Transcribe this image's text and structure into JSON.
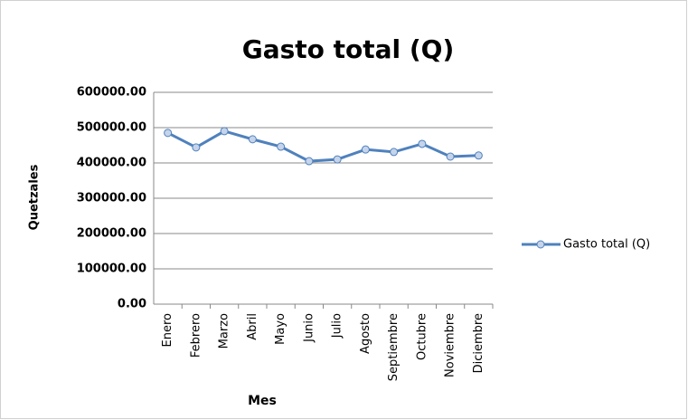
{
  "chart_data": {
    "type": "line",
    "title": "Gasto total (Q)",
    "x_label": "Mes",
    "y_label": "Quetzales",
    "categories": [
      "Enero",
      "Febrero",
      "Marzo",
      "Abril",
      "Mayo",
      "Junio",
      "Julio",
      "Agosto",
      "Septiembre",
      "Octubre",
      "Noviembre",
      "Diciembre"
    ],
    "series": [
      {
        "name": "Gasto total (Q)",
        "color": "#4f81bd",
        "values": [
          485000,
          444000,
          490000,
          467000,
          446000,
          405000,
          410000,
          438000,
          431000,
          454000,
          418000,
          421000
        ]
      }
    ],
    "ylim": [
      0,
      600000
    ],
    "yticks": [
      {
        "value": 0,
        "label": "0.00"
      },
      {
        "value": 100000,
        "label": "100000.00"
      },
      {
        "value": 200000,
        "label": "200000.00"
      },
      {
        "value": 300000,
        "label": "300000.00"
      },
      {
        "value": 400000,
        "label": "400000.00"
      },
      {
        "value": 500000,
        "label": "500000.00"
      },
      {
        "value": 600000,
        "label": "600000.00"
      }
    ],
    "grid": true,
    "legend": "right"
  }
}
